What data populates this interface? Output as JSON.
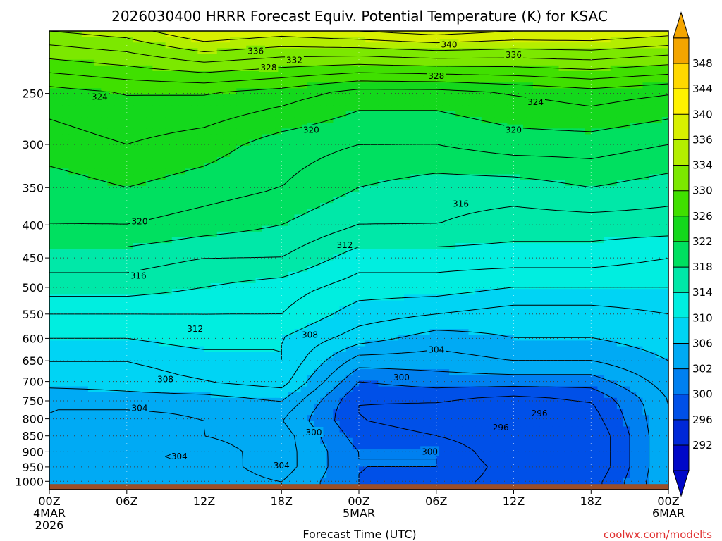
{
  "chart_data": {
    "type": "heatmap",
    "title": "2026030400 HRRR Forecast Equiv. Potential Temperature (K) for KSAC",
    "xlabel": "Forecast Time (UTC)",
    "ylabel": "",
    "credit": "coolwx.com/modelts",
    "colors": {
      "terrain": "#9b4f28",
      "grid": "#404040",
      "contour": "#000000",
      "credit": "#e03030"
    },
    "x_ticks": [
      {
        "hour": 0,
        "lines": [
          "00Z",
          "4MAR",
          "2026"
        ]
      },
      {
        "hour": 6,
        "lines": [
          "06Z"
        ]
      },
      {
        "hour": 12,
        "lines": [
          "12Z"
        ]
      },
      {
        "hour": 18,
        "lines": [
          "18Z"
        ]
      },
      {
        "hour": 24,
        "lines": [
          "00Z",
          "5MAR"
        ]
      },
      {
        "hour": 30,
        "lines": [
          "06Z"
        ]
      },
      {
        "hour": 36,
        "lines": [
          "12Z"
        ]
      },
      {
        "hour": 42,
        "lines": [
          "18Z"
        ]
      },
      {
        "hour": 48,
        "lines": [
          "00Z",
          "6MAR"
        ]
      }
    ],
    "xlim": [
      0,
      48
    ],
    "y_scale": "log-pressure",
    "ylim": [
      1030,
      200
    ],
    "y_ticks": [
      250,
      300,
      350,
      400,
      450,
      500,
      550,
      600,
      650,
      700,
      750,
      800,
      850,
      900,
      950,
      1000
    ],
    "surface_pressure": 1010,
    "colorbar": {
      "ticks": [
        348,
        344,
        340,
        336,
        334,
        330,
        326,
        322,
        318,
        314,
        310,
        306,
        302,
        300,
        296,
        292
      ],
      "colors": [
        "#f4a500",
        "#ffd800",
        "#fff200",
        "#d8f000",
        "#b4ee00",
        "#7ce800",
        "#40e000",
        "#14d81c",
        "#00e060",
        "#00e8a8",
        "#00eee0",
        "#00d4f4",
        "#00aaf4",
        "#0080f0",
        "#0050e8",
        "#0028d8",
        "#0008c8"
      ],
      "arrow_top_color": "#f4a500",
      "arrow_bottom_color": "#0008c8"
    },
    "theta_e": {
      "hours": [
        0,
        6,
        12,
        18,
        24,
        30,
        36,
        42,
        48
      ],
      "levels": [
        1000,
        950,
        900,
        850,
        800,
        750,
        700,
        650,
        600,
        550,
        500,
        450,
        400,
        350,
        300,
        250,
        200
      ],
      "values": [
        [
          303,
          302,
          303,
          304,
          300,
          299,
          297,
          297,
          304
        ],
        [
          304,
          302,
          303,
          305,
          300,
          300,
          297,
          296,
          304
        ],
        [
          304,
          303,
          303,
          305,
          300,
          300,
          296,
          296,
          304
        ],
        [
          303,
          303,
          304,
          305,
          299,
          298,
          296,
          296,
          304
        ],
        [
          304,
          303,
          304,
          304,
          298,
          297,
          296,
          297,
          304
        ],
        [
          304,
          305,
          305,
          306,
          298,
          298,
          297,
          298,
          304
        ],
        [
          307,
          307,
          308,
          309,
          300,
          301,
          301,
          301,
          305
        ],
        [
          308,
          308,
          309,
          310,
          303,
          303,
          304,
          304,
          306
        ],
        [
          310,
          310,
          311,
          310,
          307,
          305,
          306,
          306,
          307
        ],
        [
          312,
          312,
          312,
          312,
          309,
          308,
          307,
          307,
          308
        ],
        [
          315,
          315,
          314,
          313,
          311,
          311,
          310,
          310,
          310
        ],
        [
          317,
          317,
          316,
          316,
          313,
          313,
          313,
          313,
          312
        ],
        [
          320,
          320,
          319,
          318,
          316,
          316,
          315,
          315,
          315
        ],
        [
          321,
          322,
          321,
          320,
          318,
          317,
          317,
          318,
          317
        ],
        [
          323,
          324,
          323,
          321,
          320,
          320,
          321,
          321,
          320
        ],
        [
          325,
          326,
          326,
          325,
          323,
          323,
          324,
          325,
          324
        ],
        [
          334,
          335,
          338,
          337,
          338,
          339,
          338,
          338,
          337
        ]
      ]
    },
    "contour_labels": [
      {
        "text": "340",
        "hour": 31.0,
        "p": 210
      },
      {
        "text": "336",
        "hour": 16.0,
        "p": 215
      },
      {
        "text": "336",
        "hour": 36.0,
        "p": 218
      },
      {
        "text": "332",
        "hour": 19.0,
        "p": 222
      },
      {
        "text": "328",
        "hour": 17.0,
        "p": 228
      },
      {
        "text": "328",
        "hour": 30.0,
        "p": 235
      },
      {
        "text": "324",
        "hour": 3.9,
        "p": 253
      },
      {
        "text": "324",
        "hour": 37.7,
        "p": 258
      },
      {
        "text": "320",
        "hour": 20.3,
        "p": 285
      },
      {
        "text": "320",
        "hour": 36.0,
        "p": 285
      },
      {
        "text": "316",
        "hour": 31.9,
        "p": 371
      },
      {
        "text": "320",
        "hour": 7.0,
        "p": 395
      },
      {
        "text": "312",
        "hour": 22.9,
        "p": 430
      },
      {
        "text": "316",
        "hour": 6.9,
        "p": 480
      },
      {
        "text": "312",
        "hour": 11.3,
        "p": 580
      },
      {
        "text": "308",
        "hour": 20.2,
        "p": 593
      },
      {
        "text": "304",
        "hour": 30.0,
        "p": 625
      },
      {
        "text": "300",
        "hour": 27.3,
        "p": 690
      },
      {
        "text": "308",
        "hour": 9.0,
        "p": 695
      },
      {
        "text": "304",
        "hour": 7.0,
        "p": 770
      },
      {
        "text": "296",
        "hour": 38.0,
        "p": 785
      },
      {
        "text": "296",
        "hour": 35.0,
        "p": 825
      },
      {
        "text": "300",
        "hour": 20.5,
        "p": 840
      },
      {
        "text": "300",
        "hour": 29.5,
        "p": 900
      },
      {
        "text": "<304",
        "hour": 9.8,
        "p": 915
      },
      {
        "text": "304",
        "hour": 18.0,
        "p": 945
      }
    ]
  }
}
